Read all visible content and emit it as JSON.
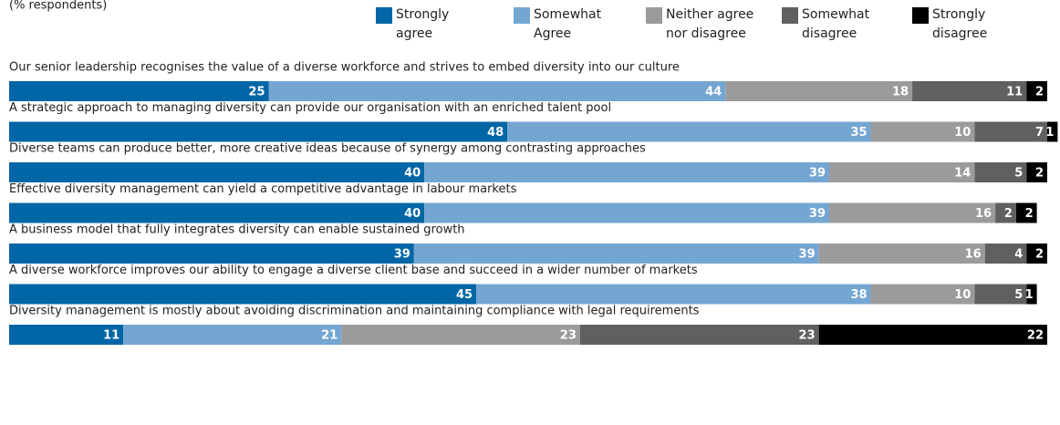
{
  "chart_data": {
    "type": "stacked_bar_horizontal",
    "subtitle": "(% respondents)",
    "categories": [
      "Our senior leadership recognises the value of a diverse workforce and strives to embed diversity into our culture",
      "A strategic approach to managing diversity can provide our organisation with an enriched talent pool",
      "Diverse teams can produce better, more creative ideas because of synergy among contrasting approaches",
      "Effective diversity management can yield a competitive advantage in labour markets",
      "A business model that fully integrates diversity can enable sustained growth",
      "A diverse workforce improves our ability to engage a diverse client base and succeed in a wider number of markets",
      "Diversity management is mostly about avoiding discrimination and maintaining compliance with legal requirements"
    ],
    "series": [
      {
        "name": "Strongly agree",
        "color": "#0066a6",
        "values": [
          25,
          48,
          40,
          40,
          39,
          45,
          11
        ]
      },
      {
        "name": "Somewhat Agree",
        "color": "#74a6d2",
        "values": [
          44,
          35,
          39,
          39,
          39,
          38,
          21
        ]
      },
      {
        "name": "Neither agree nor disagree",
        "color": "#9a9b9d",
        "values": [
          18,
          10,
          14,
          16,
          16,
          10,
          23
        ]
      },
      {
        "name": "Somewhat disagree",
        "color": "#5f6062",
        "values": [
          11,
          7,
          5,
          2,
          4,
          5,
          23
        ]
      },
      {
        "name": "Strongly disagree",
        "color": "#000000",
        "values": [
          2,
          1,
          2,
          2,
          2,
          1,
          22
        ]
      }
    ],
    "xlim": [
      0,
      100
    ]
  }
}
